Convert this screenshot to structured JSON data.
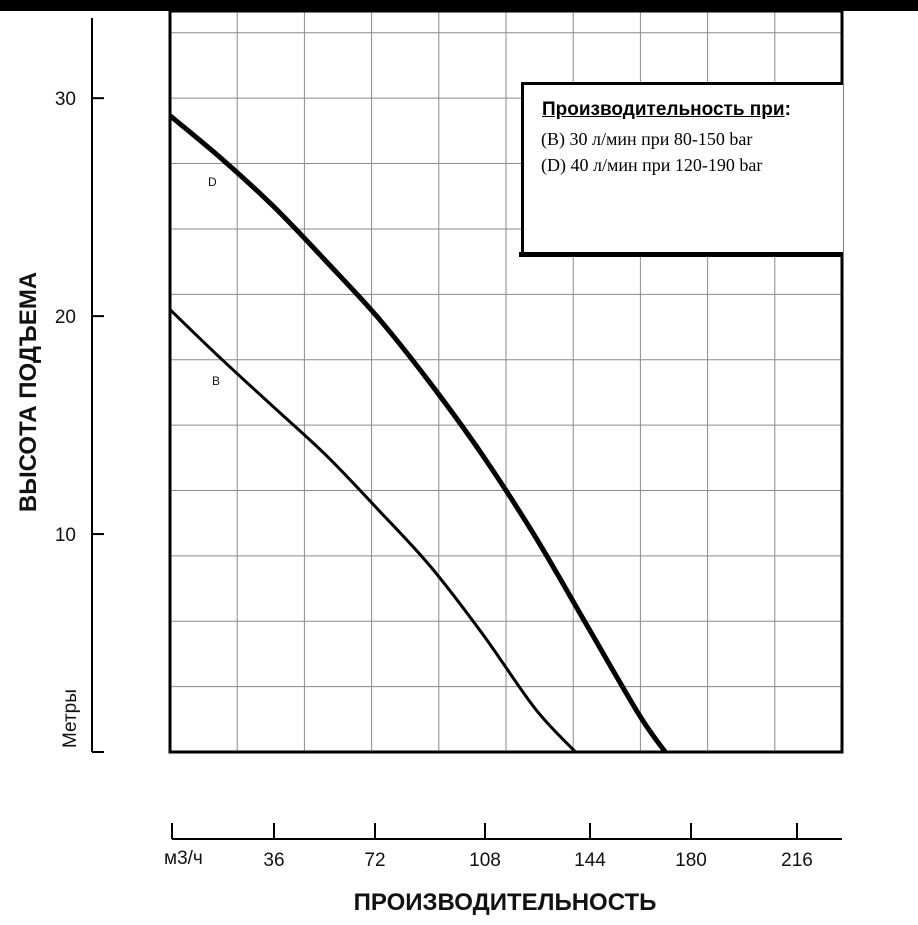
{
  "chart_data": {
    "type": "line",
    "title": "",
    "ylabel": "ВЫСОТА ПОДЪЕМА",
    "yunit": "Метры",
    "xlabel": "ПРОИЗВОДИТЕЛЬНОСТЬ",
    "xunit": "м3/ч",
    "xlim": [
      0,
      232
    ],
    "ylim": [
      0,
      34
    ],
    "x_ticks": [
      36,
      72,
      108,
      144,
      180,
      216
    ],
    "y_ticks": [
      10,
      20,
      30
    ],
    "grid": true,
    "series": [
      {
        "name": "D",
        "x": [
          0,
          18,
          36,
          54,
          72,
          90,
          108,
          126,
          144,
          162,
          171
        ],
        "y": [
          29.2,
          27.2,
          25.0,
          22.5,
          19.9,
          16.9,
          13.6,
          9.9,
          5.8,
          1.7,
          0
        ]
      },
      {
        "name": "B",
        "x": [
          0,
          18,
          36,
          54,
          72,
          90,
          108,
          126,
          140
        ],
        "y": [
          20.3,
          18.0,
          15.8,
          13.6,
          11.1,
          8.5,
          5.4,
          2.0,
          0
        ]
      }
    ],
    "legend": {
      "placement": "top-right",
      "title": "Производительность при:",
      "title_main": "Производительность при",
      "title_colon": ":",
      "lines": [
        "(B) 30 л/мин при 80-150 bar",
        "(D) 40 л/мин при 120-190 bar"
      ]
    }
  },
  "colors": {
    "line": "#000000",
    "grid": "#8a8a8a",
    "background": "#ffffff"
  }
}
